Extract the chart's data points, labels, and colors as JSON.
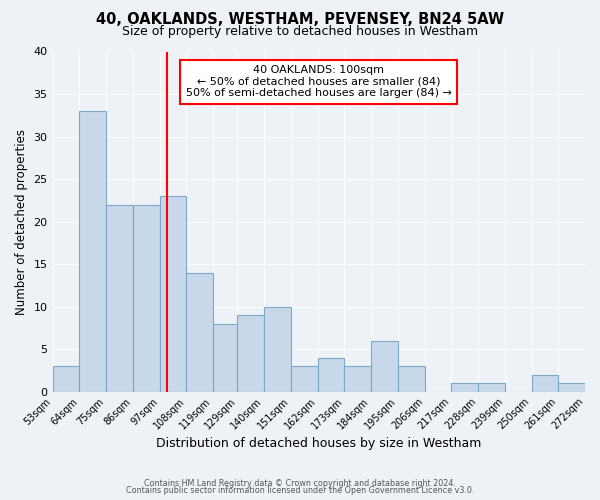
{
  "title": "40, OAKLANDS, WESTHAM, PEVENSEY, BN24 5AW",
  "subtitle": "Size of property relative to detached houses in Westham",
  "xlabel": "Distribution of detached houses by size in Westham",
  "ylabel": "Number of detached properties",
  "bar_color": "#c8d8eb",
  "bar_edge_color": "#7aaac8",
  "bg_color": "#eef2f7",
  "grid_color": "#ffffff",
  "red_line_x": 100,
  "annotation_title": "40 OAKLANDS: 100sqm",
  "annotation_line1": "← 50% of detached houses are smaller (84)",
  "annotation_line2": "50% of semi-detached houses are larger (84) →",
  "bins": [
    53,
    64,
    75,
    86,
    97,
    108,
    119,
    129,
    140,
    151,
    162,
    173,
    184,
    195,
    206,
    217,
    228,
    239,
    250,
    261,
    272
  ],
  "counts": [
    3,
    33,
    22,
    22,
    23,
    14,
    8,
    9,
    10,
    3,
    4,
    3,
    6,
    3,
    0,
    1,
    1,
    0,
    2,
    1
  ],
  "ylim": [
    0,
    40
  ],
  "yticks": [
    0,
    5,
    10,
    15,
    20,
    25,
    30,
    35,
    40
  ],
  "footer1": "Contains HM Land Registry data © Crown copyright and database right 2024.",
  "footer2": "Contains public sector information licensed under the Open Government Licence v3.0."
}
